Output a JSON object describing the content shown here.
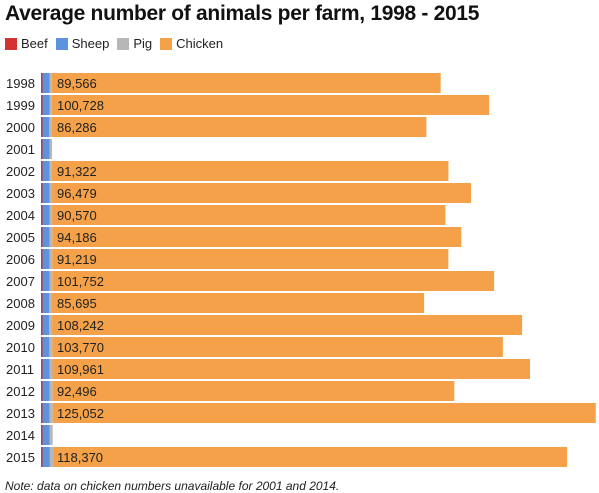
{
  "chart_data": {
    "type": "bar",
    "orientation": "horizontal",
    "stacked": true,
    "title": "Average number of animals per farm, 1998 - 2015",
    "categories": [
      "1998",
      "1999",
      "2000",
      "2001",
      "2002",
      "2003",
      "2004",
      "2005",
      "2006",
      "2007",
      "2008",
      "2009",
      "2010",
      "2011",
      "2012",
      "2013",
      "2014",
      "2015"
    ],
    "series": [
      {
        "name": "Beef",
        "color": "#d63232",
        "values": [
          130,
          130,
          135,
          140,
          130,
          130,
          135,
          135,
          130,
          130,
          125,
          130,
          130,
          135,
          130,
          130,
          140,
          140
        ]
      },
      {
        "name": "Sheep",
        "color": "#5b93dc",
        "values": [
          1620,
          1610,
          1580,
          1630,
          1600,
          1620,
          1610,
          1640,
          1600,
          1620,
          1580,
          1560,
          1590,
          1620,
          1630,
          1650,
          1620,
          1700
        ]
      },
      {
        "name": "Pig",
        "color": "#b7b7b7",
        "values": [
          500,
          520,
          540,
          560,
          560,
          580,
          600,
          620,
          640,
          620,
          600,
          640,
          660,
          680,
          700,
          700,
          720,
          740
        ]
      },
      {
        "name": "Chicken",
        "color": "#f4a14a",
        "values": [
          89566,
          100728,
          86286,
          null,
          91322,
          96479,
          90570,
          94186,
          91219,
          101752,
          85695,
          108242,
          103770,
          109961,
          92496,
          125052,
          null,
          118370
        ],
        "labels": [
          "89,566",
          "100,728",
          "86,286",
          "",
          "91,322",
          "96,479",
          "90,570",
          "94,186",
          "91,219",
          "101,752",
          "85,695",
          "108,242",
          "103,770",
          "109,961",
          "92,496",
          "125,052",
          "",
          "118,370"
        ]
      }
    ],
    "xlim": [
      0,
      125500
    ],
    "grid": false,
    "legend_position": "top-left"
  },
  "note": "Note: data on chicken numbers unavailable for 2001 and 2014."
}
